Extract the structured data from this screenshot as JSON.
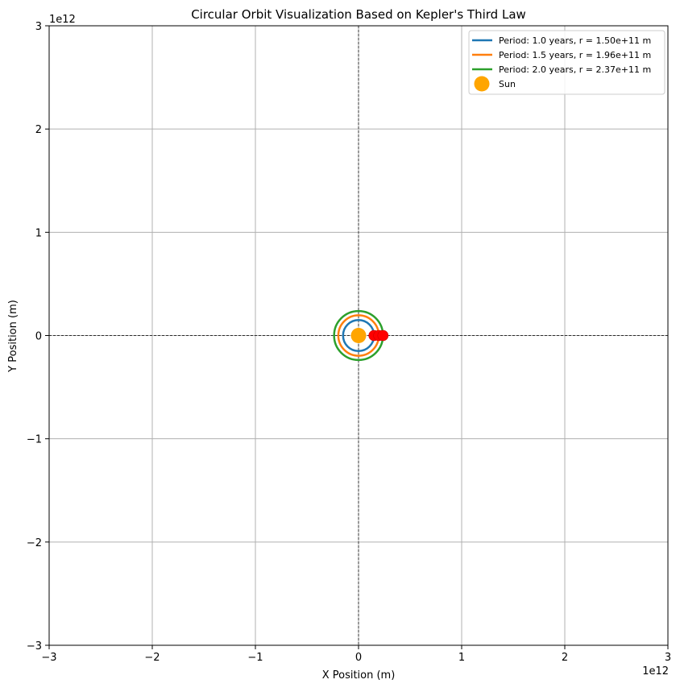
{
  "chart_data": {
    "type": "line",
    "title": "Circular Orbit Visualization Based on Kepler's Third Law",
    "xlabel": "X Position (m)",
    "ylabel": "Y Position (m)",
    "xlim": [
      -3000000000000.0,
      3000000000000.0
    ],
    "ylim": [
      -3000000000000.0,
      3000000000000.0
    ],
    "x_offset_text": "1e12",
    "y_offset_text": "1e12",
    "xticks": [
      -3000000000000.0,
      -2000000000000.0,
      -1000000000000.0,
      0,
      1000000000000.0,
      2000000000000.0,
      3000000000000.0
    ],
    "yticks": [
      -3000000000000.0,
      -2000000000000.0,
      -1000000000000.0,
      0,
      1000000000000.0,
      2000000000000.0,
      3000000000000.0
    ],
    "xtick_labels": [
      "−3",
      "−2",
      "−1",
      "0",
      "1",
      "2",
      "3"
    ],
    "ytick_labels": [
      "−3",
      "−2",
      "−1",
      "0",
      "1",
      "2",
      "3"
    ],
    "grid": true,
    "reference_lines": {
      "x": 0,
      "y": 0,
      "style": "dashed",
      "color": "#000000"
    },
    "legend_position": "top-right",
    "series": [
      {
        "name": "Period: 1.0 years, r = 1.50e+11 m",
        "shape": "circle",
        "radius": 150000000000.0,
        "center": [
          0,
          0
        ],
        "color": "#1f77b4"
      },
      {
        "name": "Period: 1.5 years, r = 1.96e+11 m",
        "shape": "circle",
        "radius": 196000000000.0,
        "center": [
          0,
          0
        ],
        "color": "#ff7f0e"
      },
      {
        "name": "Period: 2.0 years, r = 2.37e+11 m",
        "shape": "circle",
        "radius": 237000000000.0,
        "center": [
          0,
          0
        ],
        "color": "#2ca02c"
      }
    ],
    "sun": {
      "name": "Sun",
      "x": 0,
      "y": 0,
      "color": "#ffa500"
    },
    "planets": [
      {
        "x": 150000000000.0,
        "y": 0,
        "color": "#ff0000"
      },
      {
        "x": 196000000000.0,
        "y": 0,
        "color": "#ff0000"
      },
      {
        "x": 237000000000.0,
        "y": 0,
        "color": "#ff0000"
      }
    ],
    "colors": {
      "grid": "#b0b0b0",
      "axes": "#000000",
      "planet_edge": "#cc0000"
    }
  }
}
